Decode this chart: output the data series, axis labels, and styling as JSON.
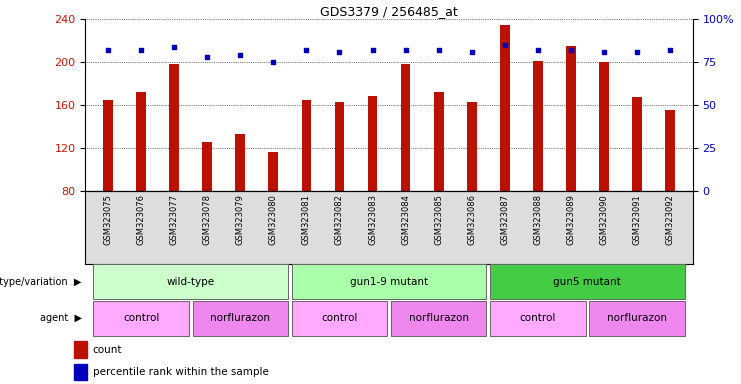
{
  "title": "GDS3379 / 256485_at",
  "samples": [
    "GSM323075",
    "GSM323076",
    "GSM323077",
    "GSM323078",
    "GSM323079",
    "GSM323080",
    "GSM323081",
    "GSM323082",
    "GSM323083",
    "GSM323084",
    "GSM323085",
    "GSM323086",
    "GSM323087",
    "GSM323088",
    "GSM323089",
    "GSM323090",
    "GSM323091",
    "GSM323092"
  ],
  "counts": [
    165,
    172,
    198,
    125,
    133,
    116,
    165,
    163,
    168,
    198,
    172,
    163,
    235,
    201,
    215,
    200,
    167,
    155
  ],
  "percentile_ranks": [
    82,
    82,
    84,
    78,
    79,
    75,
    82,
    81,
    82,
    82,
    82,
    81,
    85,
    82,
    82,
    81,
    81,
    82
  ],
  "bar_color": "#bb1100",
  "dot_color": "#0000bb",
  "bar_bottom": 80,
  "ylim_left": [
    80,
    240
  ],
  "ylim_right": [
    0,
    100
  ],
  "yticks_left": [
    80,
    120,
    160,
    200,
    240
  ],
  "yticks_right": [
    0,
    25,
    50,
    75,
    100
  ],
  "genotype_groups": [
    {
      "label": "wild-type",
      "start": 0,
      "end": 5,
      "color": "#ccffcc"
    },
    {
      "label": "gun1-9 mutant",
      "start": 6,
      "end": 11,
      "color": "#aaffaa"
    },
    {
      "label": "gun5 mutant",
      "start": 12,
      "end": 17,
      "color": "#44cc44"
    }
  ],
  "agent_groups": [
    {
      "label": "control",
      "start": 0,
      "end": 2,
      "color": "#ffaaff"
    },
    {
      "label": "norflurazon",
      "start": 3,
      "end": 5,
      "color": "#ee88ee"
    },
    {
      "label": "control",
      "start": 6,
      "end": 8,
      "color": "#ffaaff"
    },
    {
      "label": "norflurazon",
      "start": 9,
      "end": 11,
      "color": "#ee88ee"
    },
    {
      "label": "control",
      "start": 12,
      "end": 14,
      "color": "#ffaaff"
    },
    {
      "label": "norflurazon",
      "start": 15,
      "end": 17,
      "color": "#ee88ee"
    }
  ],
  "tick_label_color_left": "#cc1100",
  "tick_label_color_right": "#0000cc",
  "legend_count_color": "#bb1100",
  "legend_dot_color": "#0000bb",
  "bar_width": 0.3
}
